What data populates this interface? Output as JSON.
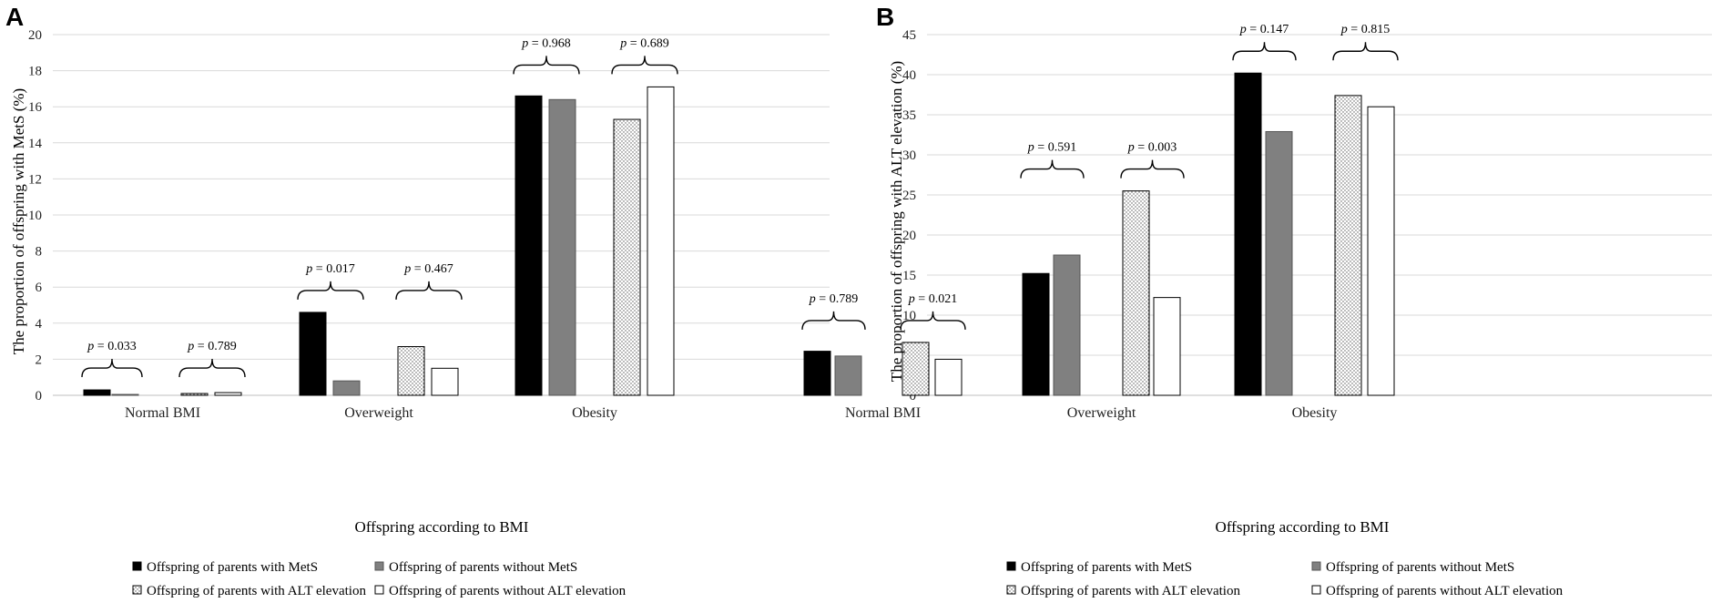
{
  "legend": [
    {
      "key": "metS",
      "label": "Offspring of parents with MetS",
      "fill": "#000000",
      "pattern": "solid"
    },
    {
      "key": "noMetS",
      "label": "Offspring of parents without MetS",
      "fill": "#808080",
      "pattern": "solid"
    },
    {
      "key": "alt",
      "label": "Offspring of parents with ALT elevation",
      "fill": "#ffffff",
      "pattern": "dots"
    },
    {
      "key": "noAlt",
      "label": "Offspring of parents without ALT elevation",
      "fill": "#ffffff",
      "pattern": "solid"
    }
  ],
  "chart_data": [
    {
      "type": "bar",
      "panel": "A",
      "ylabel": "The proportion of offspring with MetS (%)",
      "xlabel": "Offspring according to BMI",
      "ylim": [
        0,
        20
      ],
      "yticks": [
        0,
        2,
        4,
        6,
        8,
        10,
        12,
        14,
        16,
        18,
        20
      ],
      "categories": [
        "Normal BMI",
        "Overweight",
        "Obesity"
      ],
      "series": [
        {
          "name": "Offspring of parents with MetS",
          "values": [
            0.3,
            4.6,
            16.6
          ]
        },
        {
          "name": "Offspring of parents without MetS",
          "values": [
            0.05,
            0.8,
            16.4
          ]
        },
        {
          "name": "Offspring of parents with ALT elevation",
          "values": [
            0.1,
            2.7,
            15.3
          ]
        },
        {
          "name": "Offspring of parents without ALT elevation",
          "values": [
            0.15,
            1.5,
            17.1
          ]
        }
      ],
      "annotations": [
        {
          "category": "Normal BMI",
          "pair": "MetS",
          "value": "0.033"
        },
        {
          "category": "Normal BMI",
          "pair": "ALT",
          "value": "0.789"
        },
        {
          "category": "Overweight",
          "pair": "MetS",
          "value": "0.017"
        },
        {
          "category": "Overweight",
          "pair": "ALT",
          "value": "0.467"
        },
        {
          "category": "Obesity",
          "pair": "MetS",
          "value": "0.968"
        },
        {
          "category": "Obesity",
          "pair": "ALT",
          "value": "0.689"
        }
      ]
    },
    {
      "type": "bar",
      "panel": "B",
      "ylabel": "The proportion of offspring with ALT elevation (%)",
      "xlabel": "Offspring according to BMI",
      "ylim": [
        0,
        45
      ],
      "yticks": [
        0,
        5,
        10,
        15,
        20,
        25,
        30,
        35,
        40,
        45
      ],
      "categories": [
        "Normal BMI",
        "Overweight",
        "Obesity"
      ],
      "series": [
        {
          "name": "Offspring of parents with MetS",
          "values": [
            5.5,
            15.2,
            40.2
          ]
        },
        {
          "name": "Offspring of parents without MetS",
          "values": [
            4.9,
            17.5,
            32.9
          ]
        },
        {
          "name": "Offspring of parents with ALT elevation",
          "values": [
            6.6,
            25.5,
            37.4
          ]
        },
        {
          "name": "Offspring of parents without ALT elevation",
          "values": [
            4.5,
            12.2,
            36.0
          ]
        }
      ],
      "annotations": [
        {
          "category": "Normal BMI",
          "pair": "MetS",
          "value": "0.789"
        },
        {
          "category": "Normal BMI",
          "pair": "ALT",
          "value": "0.021"
        },
        {
          "category": "Overweight",
          "pair": "MetS",
          "value": "0.591"
        },
        {
          "category": "Overweight",
          "pair": "ALT",
          "value": "0.003"
        },
        {
          "category": "Obesity",
          "pair": "MetS",
          "value": "0.147"
        },
        {
          "category": "Obesity",
          "pair": "ALT",
          "value": "0.815"
        }
      ]
    }
  ]
}
